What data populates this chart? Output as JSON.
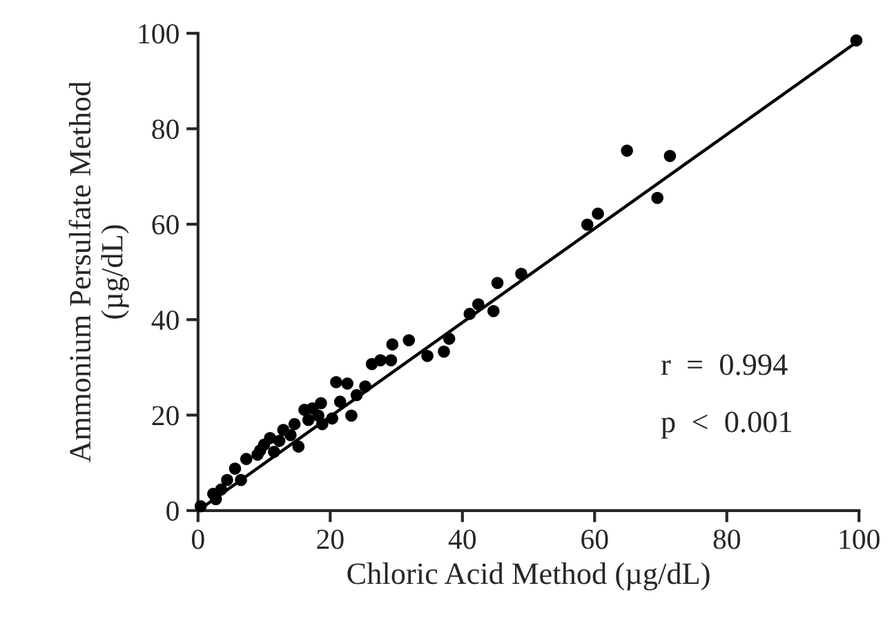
{
  "chart_data": {
    "type": "scatter",
    "xlabel": "Chloric Acid Method (µg/dL)",
    "ylabel": "Ammonium Persulfate Method\n(µg/dL)",
    "xlim": [
      0,
      100
    ],
    "ylim": [
      0,
      100
    ],
    "xticks": [
      0,
      20,
      40,
      60,
      80,
      100
    ],
    "yticks": [
      0,
      20,
      40,
      60,
      80,
      100
    ],
    "grid": false,
    "legend": false,
    "series": [
      {
        "marker": "circle",
        "color": "#000000",
        "x": [
          0.4,
          2.3,
          2.7,
          3.5,
          4.4,
          5.6,
          6.5,
          7.3,
          9,
          10,
          9.4,
          10.9,
          11.5,
          12.3,
          12.9,
          14,
          14.6,
          15.2,
          16.1,
          17.3,
          16.7,
          18.2,
          18.6,
          18.8,
          20.3,
          20.9,
          21.5,
          22.6,
          23.2,
          24,
          25.3,
          26.3,
          27.6,
          29.4,
          29.2,
          31.9,
          34.7,
          37.2,
          38,
          41.1,
          42.4,
          44.7,
          45.3,
          48.9,
          58.9,
          60.5,
          64.9,
          69.5,
          71.4,
          99.6
        ],
        "values": [
          0.9,
          3.5,
          2.4,
          4.4,
          6.4,
          8.8,
          6.4,
          10.8,
          11.7,
          13.8,
          12.6,
          15.2,
          12.3,
          14.6,
          16.9,
          15.8,
          18.1,
          13.4,
          21.1,
          21.4,
          19,
          19.9,
          22.5,
          18.1,
          19.3,
          26.9,
          22.8,
          26.6,
          19.9,
          24.2,
          26,
          30.7,
          31.5,
          34.8,
          31.5,
          35.7,
          32.4,
          33.3,
          36,
          41.2,
          43.2,
          41.8,
          47.7,
          49.6,
          59.9,
          62.2,
          75.4,
          65.5,
          74.3,
          98.5
        ]
      },
      {
        "type": "line",
        "marker": "none",
        "color": "#000000",
        "x": [
          0,
          100
        ],
        "values": [
          0,
          98.5
        ]
      }
    ],
    "annotations": [
      "r  =  0.994",
      "p  <  0.001"
    ]
  }
}
